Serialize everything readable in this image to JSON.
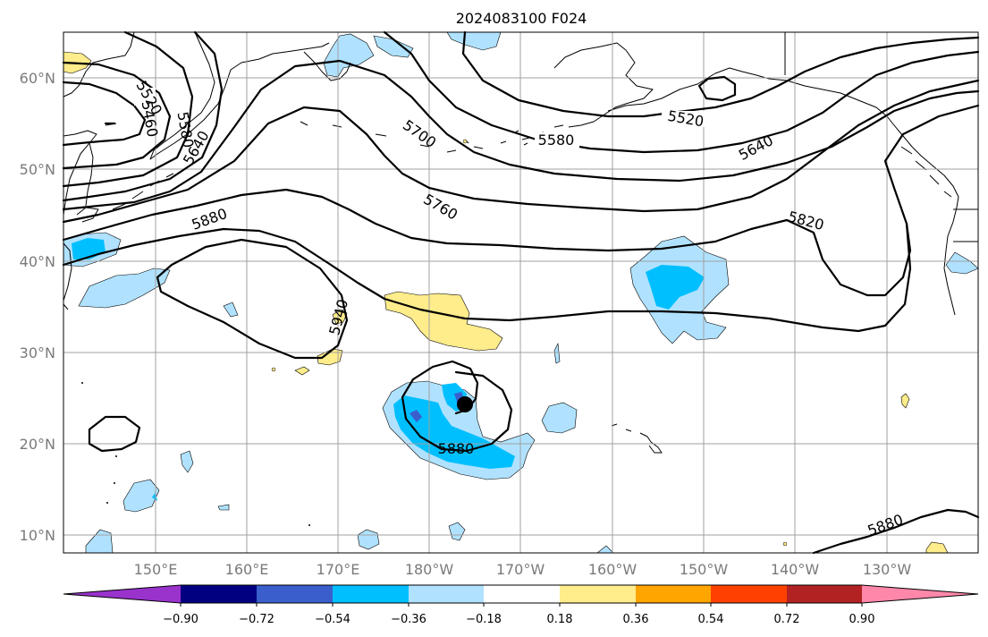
{
  "title": "2024083100 F024",
  "lat_labels": [
    "60°N",
    "50°N",
    "40°N",
    "30°N",
    "20°N",
    "10°N"
  ],
  "lon_labels": [
    "150°E",
    "160°E",
    "170°E",
    "180°W",
    "170°W",
    "160°W",
    "150°W",
    "140°W",
    "130°W"
  ],
  "contour_labels": [
    "5520",
    "5460",
    "5580",
    "5640",
    "5700",
    "5580",
    "5520",
    "5640",
    "5760",
    "5880",
    "5820",
    "5940",
    "5880",
    "5880"
  ],
  "colorbar": {
    "colors": [
      "#9933cc",
      "#000080",
      "#3a5fcd",
      "#00bfff",
      "#b0e2ff",
      "#ffffff",
      "#ffec8b",
      "#ffa500",
      "#ff4000",
      "#b22222",
      "#ff88aa"
    ],
    "tick_labels": [
      "−0.90",
      "−0.72",
      "−0.54",
      "−0.36",
      "−0.18",
      "0.18",
      "0.36",
      "0.54",
      "0.72",
      "0.90"
    ]
  },
  "fill_colors": {
    "light_blue": "#b0e2ff",
    "blue": "#00bfff",
    "dark_blue": "#3a5fcd",
    "yellow": "#ffec8b"
  },
  "marker": {
    "name": "storm-center",
    "color": "#000000"
  }
}
